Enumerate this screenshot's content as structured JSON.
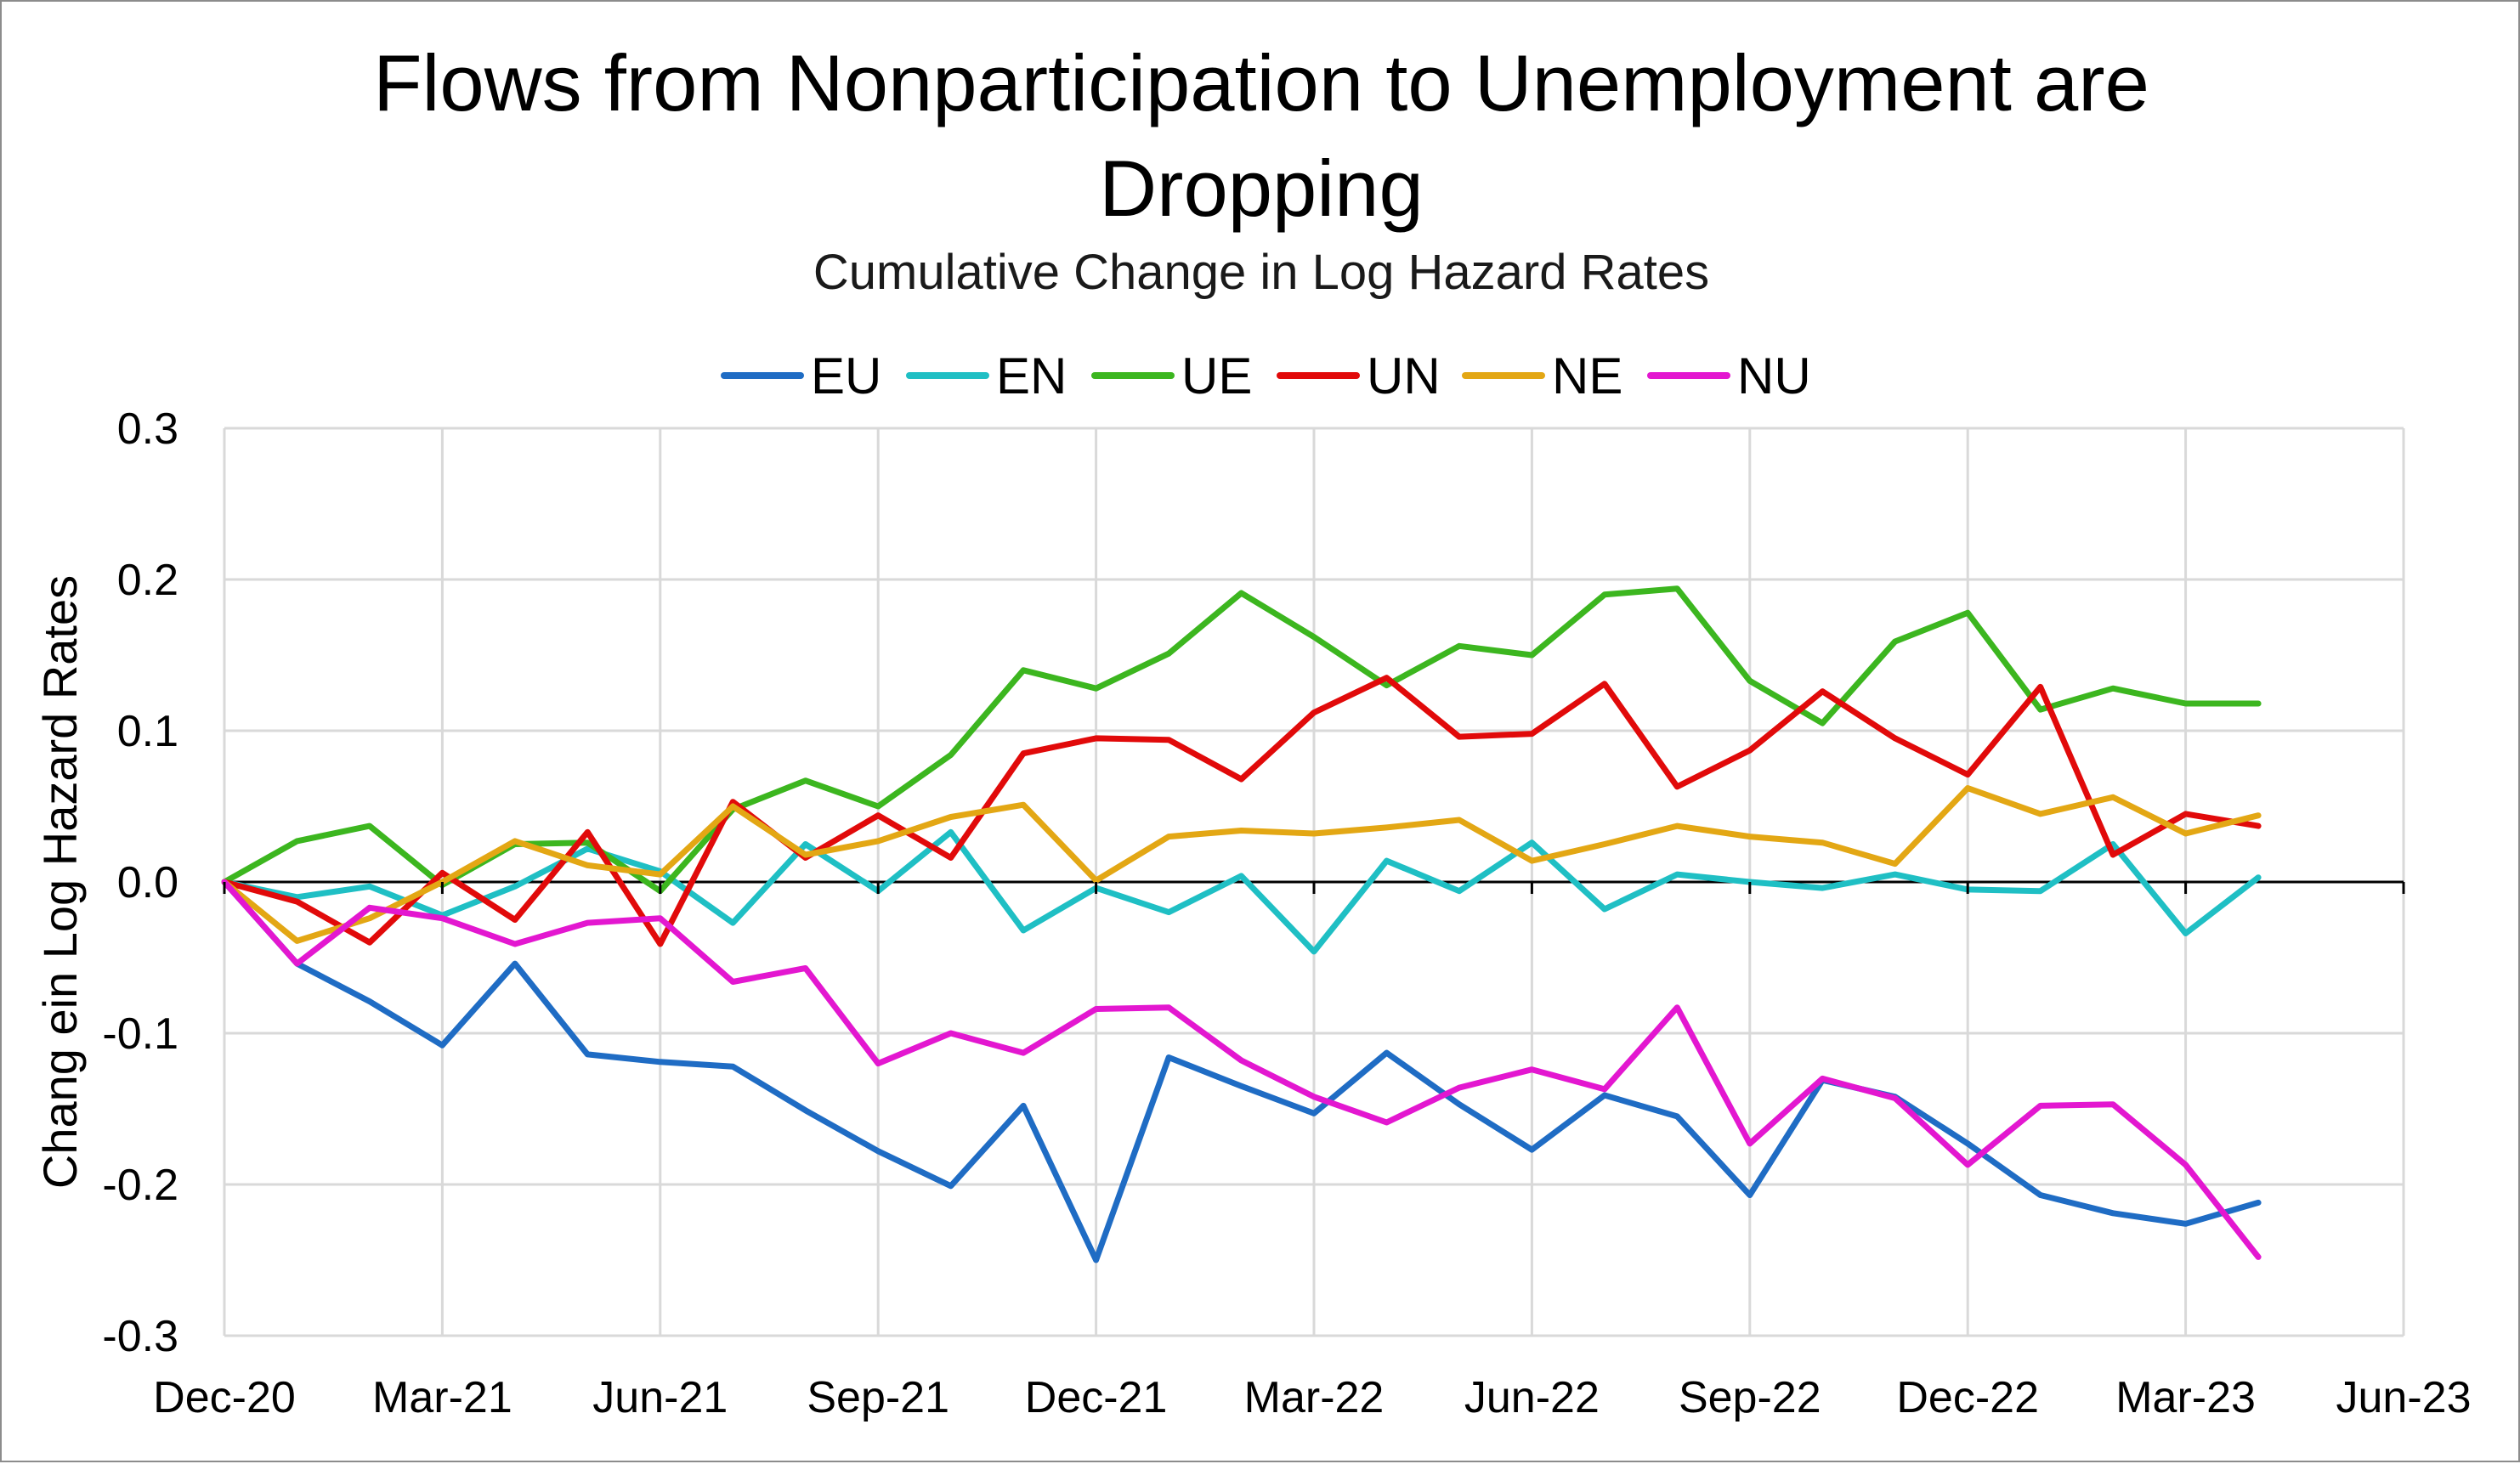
{
  "chart_data": {
    "type": "line",
    "title_lines": [
      "Flows from Nonparticipation to Unemployment are",
      "Dropping"
    ],
    "subtitle": "Cumulative Change in Log Hazard Rates",
    "xlabel": "",
    "ylabel": "Chang ein Log Hazard Rates",
    "ylim": [
      -0.3,
      0.3
    ],
    "y_ticks": [
      "0.3",
      "0.2",
      "0.1",
      "0.0",
      "-0.1",
      "-0.2",
      "-0.3"
    ],
    "y_tick_values": [
      0.3,
      0.2,
      0.1,
      0.0,
      -0.1,
      -0.2,
      -0.3
    ],
    "x_tick_labels": [
      "Dec-20",
      "Mar-21",
      "Jun-21",
      "Sep-21",
      "Dec-21",
      "Mar-22",
      "Jun-22",
      "Sep-22",
      "Dec-22",
      "Mar-23",
      "Jun-23"
    ],
    "x_range_months": [
      0,
      30
    ],
    "x_months": [
      0,
      1,
      2,
      3,
      4,
      5,
      6,
      7,
      8,
      9,
      10,
      11,
      12,
      13,
      14,
      15,
      16,
      17,
      18,
      19,
      20,
      21,
      22,
      23,
      24,
      25,
      26,
      27,
      28
    ],
    "grid": true,
    "legend_position": "top",
    "series": [
      {
        "name": "EU",
        "color": "#1f6cc4",
        "values": [
          0.0,
          -0.054,
          -0.079,
          -0.108,
          -0.054,
          -0.114,
          -0.119,
          -0.122,
          -0.151,
          -0.178,
          -0.201,
          -0.148,
          -0.25,
          -0.116,
          -0.135,
          -0.153,
          -0.113,
          -0.147,
          -0.177,
          -0.141,
          -0.155,
          -0.207,
          -0.131,
          -0.142,
          -0.173,
          -0.207,
          -0.219,
          -0.226,
          -0.212
        ]
      },
      {
        "name": "EN",
        "color": "#1fbfc4",
        "values": [
          0.0,
          -0.01,
          -0.003,
          -0.022,
          -0.003,
          0.022,
          0.007,
          -0.027,
          0.025,
          -0.006,
          0.033,
          -0.032,
          -0.004,
          -0.02,
          0.004,
          -0.046,
          0.014,
          -0.006,
          0.026,
          -0.018,
          0.005,
          0.0,
          -0.004,
          0.005,
          -0.005,
          -0.006,
          0.025,
          -0.034,
          0.003
        ]
      },
      {
        "name": "UE",
        "color": "#3cb61f",
        "values": [
          0.0,
          0.027,
          0.037,
          -0.002,
          0.025,
          0.026,
          -0.006,
          0.048,
          0.067,
          0.05,
          0.084,
          0.14,
          0.128,
          0.151,
          0.191,
          0.162,
          0.13,
          0.156,
          0.15,
          0.19,
          0.194,
          0.133,
          0.105,
          0.159,
          0.178,
          0.114,
          0.128,
          0.118,
          0.118
        ]
      },
      {
        "name": "UN",
        "color": "#e10a0a",
        "values": [
          0.0,
          -0.013,
          -0.04,
          0.006,
          -0.025,
          0.033,
          -0.041,
          0.053,
          0.016,
          0.044,
          0.016,
          0.085,
          0.095,
          0.094,
          0.068,
          0.112,
          0.135,
          0.096,
          0.098,
          0.131,
          0.063,
          0.087,
          0.126,
          0.095,
          0.071,
          0.129,
          0.018,
          0.045,
          0.037
        ]
      },
      {
        "name": "NE",
        "color": "#e3a714",
        "values": [
          0.0,
          -0.039,
          -0.024,
          0.0,
          0.027,
          0.011,
          0.005,
          0.05,
          0.018,
          0.027,
          0.043,
          0.051,
          0.001,
          0.03,
          0.034,
          0.032,
          0.036,
          0.041,
          0.014,
          0.025,
          0.037,
          0.03,
          0.026,
          0.012,
          0.062,
          0.045,
          0.056,
          0.032,
          0.044
        ]
      },
      {
        "name": "NU",
        "color": "#e317d0",
        "values": [
          0.0,
          -0.054,
          -0.017,
          -0.024,
          -0.041,
          -0.027,
          -0.024,
          -0.066,
          -0.057,
          -0.12,
          -0.1,
          -0.113,
          -0.084,
          -0.083,
          -0.118,
          -0.142,
          -0.159,
          -0.136,
          -0.124,
          -0.137,
          -0.083,
          -0.173,
          -0.13,
          -0.143,
          -0.187,
          -0.148,
          -0.147,
          -0.187,
          -0.248
        ]
      }
    ]
  },
  "styles": {
    "grid_color": "#d9d9d9",
    "zero_line_color": "#000000",
    "frame_color": "#8c8c8c"
  }
}
